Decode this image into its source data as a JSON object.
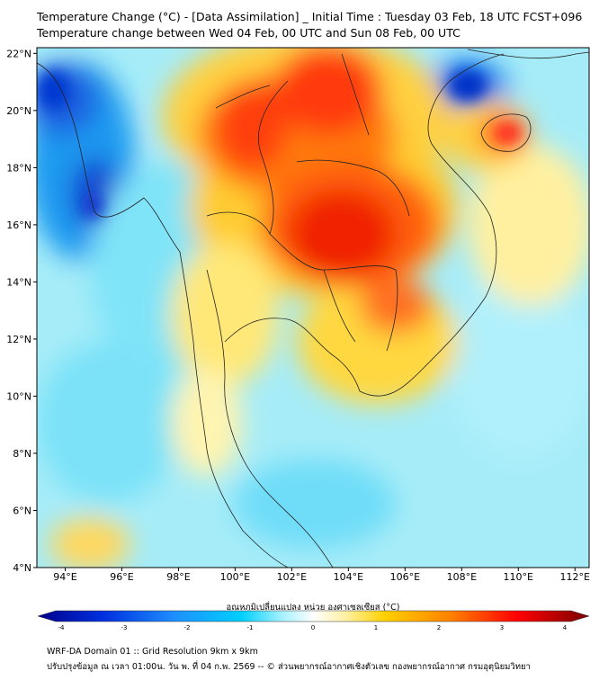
{
  "title": {
    "line1": "Temperature Change (°C) - [Data Assimilation] _ Initial Time : Tuesday 03 Feb, 18 UTC FCST+096",
    "line2": "Temperature change between Wed 04 Feb, 00 UTC and Sun 08 Feb, 00 UTC"
  },
  "map": {
    "lon_range": [
      93,
      112.5
    ],
    "lat_range": [
      4,
      22.2
    ],
    "lat_ticks": [
      {
        "value": 22,
        "label": "22°N"
      },
      {
        "value": 20,
        "label": "20°N"
      },
      {
        "value": 18,
        "label": "18°N"
      },
      {
        "value": 16,
        "label": "16°N"
      },
      {
        "value": 14,
        "label": "14°N"
      },
      {
        "value": 12,
        "label": "12°N"
      },
      {
        "value": 10,
        "label": "10°N"
      },
      {
        "value": 8,
        "label": "8°N"
      },
      {
        "value": 6,
        "label": "6°N"
      },
      {
        "value": 4,
        "label": "4°N"
      }
    ],
    "lon_ticks": [
      {
        "value": 94,
        "label": "94°E"
      },
      {
        "value": 96,
        "label": "96°E"
      },
      {
        "value": 98,
        "label": "98°E"
      },
      {
        "value": 100,
        "label": "100°E"
      },
      {
        "value": 102,
        "label": "102°E"
      },
      {
        "value": 104,
        "label": "104°E"
      },
      {
        "value": 106,
        "label": "106°E"
      },
      {
        "value": 108,
        "label": "108°E"
      },
      {
        "value": 110,
        "label": "110°E"
      },
      {
        "value": 112,
        "label": "112°E"
      }
    ]
  },
  "colorbar": {
    "label": "อุณหภูมิเปลี่ยนแปลง หน่วย องศาเซลเซียส (°C)",
    "range": [
      -4,
      4
    ],
    "ticks": [
      {
        "value": -4,
        "label": "-4"
      },
      {
        "value": -3,
        "label": "-3"
      },
      {
        "value": -2,
        "label": "-2"
      },
      {
        "value": -1,
        "label": "-1"
      },
      {
        "value": 0,
        "label": "0"
      },
      {
        "value": 1,
        "label": "1"
      },
      {
        "value": 2,
        "label": "2"
      },
      {
        "value": 3,
        "label": "3"
      },
      {
        "value": 4,
        "label": "4"
      }
    ],
    "colors": {
      "minus4": "#00008b",
      "minus3": "#0030e0",
      "minus2": "#1e90ff",
      "minus1": "#00d0ff",
      "minus05": "#a0f0ff",
      "zero": "#ffffff",
      "plus05": "#fff0a0",
      "plus1": "#ffd000",
      "plus2": "#ff8000",
      "plus3": "#ff0000",
      "plus4": "#7a0000"
    }
  },
  "footer": {
    "line1": "WRF-DA Domain 01 :: Grid Resolution 9km x 9km",
    "line2": "ปรับปรุงข้อมูล ณ เวลา 01:00น. วัน พ. ที่ 04 ก.พ. 2569 -- © ส่วนพยากรณ์อากาศเชิงตัวเลข กองพยากรณ์อากาศ กรมอุตุนิยมวิทยา"
  }
}
